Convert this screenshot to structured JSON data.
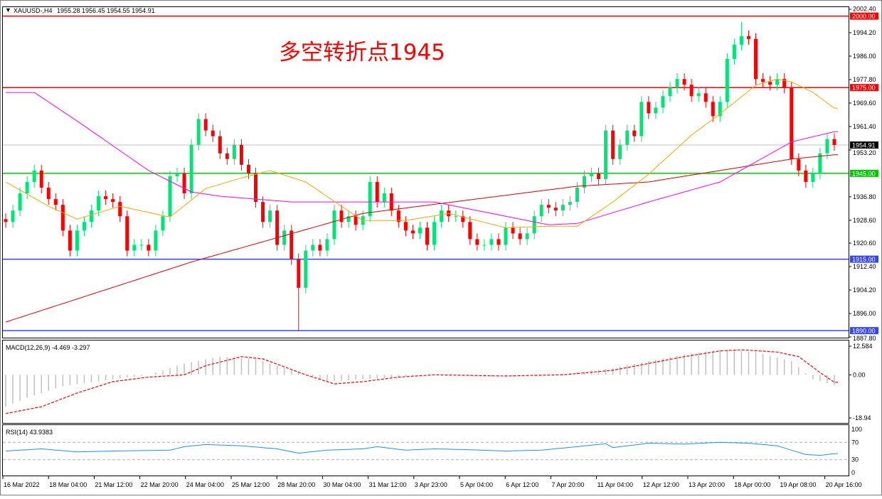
{
  "header": {
    "symbol": "XAUUSD-,H4",
    "ohlc": "1955.28 1956.45 1954.55 1954.91"
  },
  "annotation": "多空转折点1945",
  "colors": {
    "bull": "#00e676",
    "bear": "#ff0000",
    "ma_long": "#e00000",
    "ma_mid": "#ff00ff",
    "ma_short": "#ffa500",
    "resistance": "#ff0000",
    "pivot": "#00cc00",
    "support": "#3344ff",
    "rsi": "#1e90ff",
    "macd_hist": "#c0c0c0",
    "macd_signal": "#ff0000"
  },
  "chart_data": [
    {
      "type": "candlestick",
      "title": "XAUUSD-,H4",
      "ylim": [
        1887.8,
        2002.4
      ],
      "y_ticks": [
        "2002.40",
        "1994.20",
        "1986.00",
        "1977.80",
        "1969.60",
        "1961.40",
        "1953.20",
        "1936.80",
        "1928.60",
        "1920.60",
        "1912.40",
        "1904.20",
        "1896.00",
        "1887.80"
      ],
      "x_ticks": [
        "16 Mar 2022",
        "18 Mar 04:00",
        "21 Mar 12:00",
        "22 Mar 20:00",
        "24 Mar 04:00",
        "25 Mar 12:00",
        "28 Mar 20:00",
        "30 Mar 04:00",
        "31 Mar 12:00",
        "3 Apr 23:00",
        "5 Apr 04:00",
        "6 Apr 12:00",
        "7 Apr 20:00",
        "11 Apr 04:00",
        "12 Apr 12:00",
        "13 Apr 20:00",
        "18 Apr 00:00",
        "19 Apr 08:00",
        "20 Apr 16:00"
      ],
      "closes": [
        1928,
        1932,
        1938,
        1942,
        1946,
        1940,
        1936,
        1934,
        1925,
        1918,
        1925,
        1928,
        1932,
        1937,
        1936,
        1935,
        1930,
        1918,
        1920,
        1920,
        1918,
        1925,
        1930,
        1944,
        1945,
        1938,
        1955,
        1964,
        1960,
        1958,
        1952,
        1950,
        1955,
        1948,
        1945,
        1935,
        1928,
        1932,
        1920,
        1925,
        1915,
        1905,
        1918,
        1920,
        1918,
        1922,
        1932,
        1928,
        1930,
        1927,
        1930,
        1942,
        1935,
        1938,
        1932,
        1928,
        1925,
        1924,
        1926,
        1920,
        1928,
        1932,
        1930,
        1930,
        1928,
        1922,
        1920,
        1920,
        1922,
        1920,
        1926,
        1924,
        1922,
        1924,
        1930,
        1934,
        1933,
        1932,
        1934,
        1935,
        1940,
        1944,
        1945,
        1943,
        1960,
        1950,
        1955,
        1960,
        1958,
        1970,
        1966,
        1968,
        1972,
        1975,
        1978,
        1976,
        1972,
        1973,
        1970,
        1965,
        1970,
        1985,
        1990,
        1993,
        1992,
        1978,
        1977,
        1976,
        1978,
        1975,
        1950,
        1946,
        1942,
        1945,
        1952,
        1957,
        1954.91
      ],
      "extremes": {
        "low": 1890,
        "high": 1998
      },
      "last_price": "1954.91",
      "levels": [
        {
          "value": 2000,
          "label": "2000.00",
          "kind": "resistance"
        },
        {
          "value": 1975,
          "label": "1975.00",
          "kind": "resistance"
        },
        {
          "value": 1945,
          "label": "1945.00",
          "kind": "pivot"
        },
        {
          "value": 1915,
          "label": "1915.00",
          "kind": "support"
        },
        {
          "value": 1890,
          "label": "1890.00",
          "kind": "support"
        }
      ],
      "moving_averages": {
        "long": [
          [
            0,
            1893
          ],
          [
            26,
            1914
          ],
          [
            50,
            1931
          ],
          [
            80,
            1940.5
          ],
          [
            90,
            1942
          ],
          [
            110,
            1950
          ],
          [
            116,
            1951.5
          ]
        ],
        "mid": [
          [
            0,
            1973.3
          ],
          [
            4,
            1973.3
          ],
          [
            10,
            1963.3
          ],
          [
            20,
            1946
          ],
          [
            26,
            1938.5
          ],
          [
            30,
            1937
          ],
          [
            40,
            1935
          ],
          [
            60,
            1935
          ],
          [
            66,
            1932
          ],
          [
            76,
            1927
          ],
          [
            80,
            1927.5
          ],
          [
            90,
            1935
          ],
          [
            100,
            1942
          ],
          [
            110,
            1956
          ],
          [
            116,
            1959.6
          ]
        ],
        "short": [
          [
            0,
            1942
          ],
          [
            6,
            1933.5
          ],
          [
            10,
            1929
          ],
          [
            16,
            1933.5
          ],
          [
            23,
            1929.7
          ],
          [
            28,
            1939.7
          ],
          [
            33,
            1943.4
          ],
          [
            37,
            1946
          ],
          [
            42,
            1942
          ],
          [
            47,
            1933.5
          ],
          [
            50,
            1928.5
          ],
          [
            56,
            1928.5
          ],
          [
            62,
            1931
          ],
          [
            70,
            1926
          ],
          [
            76,
            1926.5
          ],
          [
            80,
            1926.5
          ],
          [
            85,
            1935
          ],
          [
            90,
            1944.7
          ],
          [
            96,
            1958.4
          ],
          [
            100,
            1965.8
          ],
          [
            105,
            1975.8
          ],
          [
            108,
            1978
          ],
          [
            110,
            1977
          ],
          [
            113,
            1973.3
          ],
          [
            116,
            1967.8
          ]
        ]
      }
    },
    {
      "type": "bar+line",
      "title": "MACD(12,26,9) -4.469 -3.297",
      "ylim": [
        -18.94,
        12.584
      ],
      "y_ticks": [
        "12.584",
        "0.00",
        "-18.94"
      ],
      "macd": [
        [
          0,
          -14
        ],
        [
          3,
          -10
        ],
        [
          8,
          -5
        ],
        [
          15,
          -2
        ],
        [
          20,
          0
        ],
        [
          25,
          5
        ],
        [
          30,
          8
        ],
        [
          35,
          7
        ],
        [
          40,
          2
        ],
        [
          45,
          -3
        ],
        [
          50,
          -2
        ],
        [
          55,
          -1
        ],
        [
          60,
          0
        ],
        [
          70,
          -1
        ],
        [
          80,
          1
        ],
        [
          85,
          3
        ],
        [
          90,
          6
        ],
        [
          95,
          9
        ],
        [
          100,
          11
        ],
        [
          105,
          10
        ],
        [
          110,
          6
        ],
        [
          113,
          -2
        ],
        [
          116,
          -4.469
        ]
      ],
      "signal": [
        [
          0,
          -17
        ],
        [
          5,
          -14
        ],
        [
          10,
          -8
        ],
        [
          15,
          -3
        ],
        [
          20,
          -1
        ],
        [
          25,
          0
        ],
        [
          28,
          4
        ],
        [
          33,
          8
        ],
        [
          36,
          7
        ],
        [
          42,
          0
        ],
        [
          46,
          -4
        ],
        [
          50,
          -3
        ],
        [
          55,
          -1
        ],
        [
          60,
          0
        ],
        [
          70,
          -0.5
        ],
        [
          78,
          0
        ],
        [
          85,
          2
        ],
        [
          90,
          5
        ],
        [
          95,
          8
        ],
        [
          100,
          10.5
        ],
        [
          103,
          11
        ],
        [
          108,
          10
        ],
        [
          111,
          8
        ],
        [
          114,
          1
        ],
        [
          116,
          -3.297
        ]
      ]
    },
    {
      "type": "line",
      "title": "RSI(14) 43.9383",
      "ylim": [
        0,
        100
      ],
      "y_ticks": [
        "100",
        "70",
        "30",
        "0"
      ],
      "levels": [
        70,
        30
      ],
      "values": [
        [
          0,
          50
        ],
        [
          5,
          55
        ],
        [
          10,
          48
        ],
        [
          15,
          50
        ],
        [
          23,
          52
        ],
        [
          25,
          60
        ],
        [
          28,
          65
        ],
        [
          33,
          62
        ],
        [
          38,
          55
        ],
        [
          41,
          45
        ],
        [
          45,
          52
        ],
        [
          50,
          55
        ],
        [
          52,
          60
        ],
        [
          56,
          52
        ],
        [
          60,
          55
        ],
        [
          65,
          53
        ],
        [
          70,
          50
        ],
        [
          75,
          52
        ],
        [
          80,
          60
        ],
        [
          84,
          67
        ],
        [
          85,
          58
        ],
        [
          90,
          68
        ],
        [
          95,
          66
        ],
        [
          100,
          70
        ],
        [
          104,
          68
        ],
        [
          108,
          62
        ],
        [
          110,
          52
        ],
        [
          112,
          42
        ],
        [
          114,
          40
        ],
        [
          116,
          43.94
        ]
      ]
    }
  ]
}
